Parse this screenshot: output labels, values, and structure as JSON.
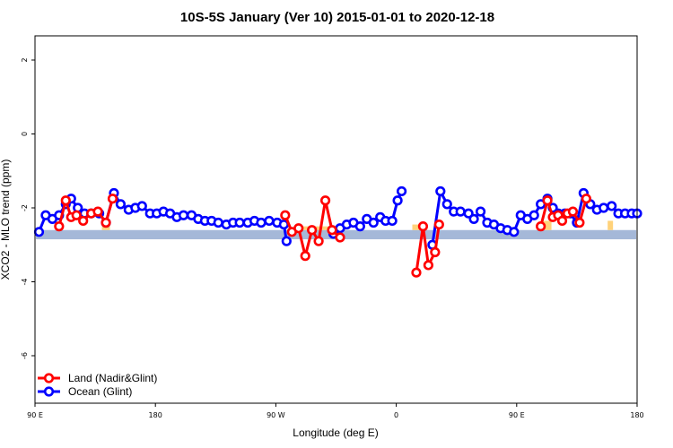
{
  "chart_data": {
    "type": "line",
    "title": "10S-5S January (Ver 10)   2015-01-01 to 2020-12-18",
    "xlabel": "Longitude (deg E)",
    "ylabel": "XCO2 - MLO trend (ppm)",
    "xlim": [
      90,
      540
    ],
    "ylim": [
      -7.2,
      2.7
    ],
    "xticks": [
      90,
      180,
      270,
      360,
      450,
      540
    ],
    "xtick_labels": [
      "90 E",
      "180",
      "90 W",
      "0",
      "90 E",
      "180"
    ],
    "yticks": [
      2,
      0,
      -2,
      -4,
      -6
    ],
    "yband": [
      -2.6,
      -2.85
    ],
    "land_fill": [
      {
        "x": [
          140,
          146
        ],
        "y": [
          -2.35,
          -2.6
        ]
      },
      {
        "x": [
          288,
          322
        ],
        "y": [
          -2.5,
          -2.6
        ]
      },
      {
        "x": [
          372,
          383
        ],
        "y": [
          -2.45,
          -2.6
        ]
      },
      {
        "x": [
          470,
          476
        ],
        "y": [
          -2.35,
          -2.6
        ]
      },
      {
        "x": [
          518,
          522
        ],
        "y": [
          -2.35,
          -2.6
        ]
      }
    ],
    "legend": [
      "Land (Nadir&Glint)",
      "Ocean (Glint)"
    ],
    "colors": {
      "land": "#ff0000",
      "ocean": "#0000ff",
      "band": "#a5b8d8",
      "landfill": "#ffd27a"
    },
    "series": [
      {
        "name": "Land (Nadir&Glint)",
        "segments": [
          {
            "x": [
              108,
              113,
              117,
              121,
              126,
              132,
              137,
              143,
              148
            ],
            "y": [
              -2.5,
              -1.8,
              -2.25,
              -2.2,
              -2.35,
              -2.15,
              -2.1,
              -2.4,
              -1.75
            ]
          },
          {
            "x": [
              277,
              282,
              287,
              292,
              297,
              302,
              307,
              312,
              318
            ],
            "y": [
              -2.2,
              -2.65,
              -2.55,
              -3.3,
              -2.6,
              -2.9,
              -1.8,
              -2.6,
              -2.8
            ]
          },
          {
            "x": [
              375,
              380,
              384,
              389,
              392
            ],
            "y": [
              -3.75,
              -2.5,
              -3.55,
              -3.2,
              -2.45
            ]
          },
          {
            "x": [
              468,
              473,
              477,
              481,
              484,
              488,
              492,
              497,
              502
            ],
            "y": [
              -2.5,
              -1.8,
              -2.25,
              -2.2,
              -2.35,
              -2.15,
              -2.1,
              -2.4,
              -1.75
            ]
          }
        ]
      },
      {
        "name": "Ocean (Glint)",
        "segments": [
          {
            "x": [
              93,
              98,
              103,
              108,
              113,
              117,
              122,
              127,
              132,
              138,
              143,
              149,
              154,
              160,
              165,
              170,
              176,
              181,
              186,
              191,
              196,
              201,
              207,
              212,
              217,
              222,
              227,
              233,
              238,
              243,
              249,
              254,
              259,
              265,
              271,
              276,
              278
            ],
            "y": [
              -2.65,
              -2.2,
              -2.3,
              -2.2,
              -1.9,
              -1.75,
              -2.0,
              -2.15,
              -2.15,
              -2.15,
              -2.4,
              -1.6,
              -1.9,
              -2.05,
              -2.0,
              -1.95,
              -2.15,
              -2.15,
              -2.1,
              -2.15,
              -2.25,
              -2.2,
              -2.2,
              -2.3,
              -2.35,
              -2.35,
              -2.4,
              -2.45,
              -2.4,
              -2.4,
              -2.4,
              -2.35,
              -2.4,
              -2.35,
              -2.4,
              -2.45,
              -2.9
            ]
          },
          {
            "x": [
              313,
              318,
              323,
              328,
              333,
              338,
              343,
              348,
              352,
              357,
              361,
              364
            ],
            "y": [
              -2.7,
              -2.55,
              -2.45,
              -2.4,
              -2.5,
              -2.3,
              -2.4,
              -2.25,
              -2.35,
              -2.35,
              -1.8,
              -1.55
            ]
          },
          {
            "x": [
              387,
              393,
              398,
              403,
              408,
              414,
              418,
              423,
              428,
              433,
              438,
              443,
              448,
              453,
              458,
              463,
              468,
              473,
              477,
              481,
              486,
              490,
              495,
              500,
              505,
              510,
              515,
              521,
              526,
              531,
              536,
              540
            ],
            "y": [
              -3.0,
              -1.55,
              -1.9,
              -2.1,
              -2.1,
              -2.15,
              -2.3,
              -2.1,
              -2.4,
              -2.45,
              -2.55,
              -2.6,
              -2.65,
              -2.2,
              -2.3,
              -2.2,
              -1.9,
              -1.75,
              -2.0,
              -2.15,
              -2.15,
              -2.15,
              -2.4,
              -1.6,
              -1.9,
              -2.05,
              -2.0,
              -1.95,
              -2.15,
              -2.15,
              -2.15,
              -2.15
            ]
          }
        ]
      }
    ]
  }
}
